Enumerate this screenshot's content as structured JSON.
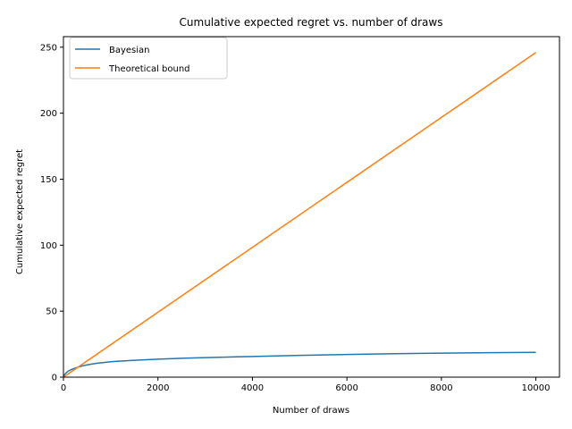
{
  "chart_data": {
    "type": "line",
    "title": "Cumulative expected regret vs. number of draws",
    "xlabel": "Number of draws",
    "ylabel": "Cumulative expected regret",
    "xlim": [
      0,
      10500
    ],
    "ylim": [
      0,
      258
    ],
    "xticks": [
      0,
      2000,
      4000,
      6000,
      8000,
      10000
    ],
    "yticks": [
      0,
      50,
      100,
      150,
      200,
      250
    ],
    "grid": false,
    "legend_position": "upper-left",
    "series": [
      {
        "name": "Bayesian",
        "color": "#1f77b4",
        "x": [
          0,
          25,
          50,
          100,
          150,
          200,
          300,
          400,
          500,
          700,
          1000,
          1500,
          2000,
          2500,
          3000,
          4000,
          5000,
          6000,
          7000,
          8000,
          9000,
          10000
        ],
        "y": [
          0,
          2.0,
          3.0,
          4.5,
          5.5,
          6.2,
          7.5,
          8.5,
          9.3,
          10.5,
          11.7,
          12.8,
          13.6,
          14.3,
          14.8,
          15.7,
          16.5,
          17.2,
          17.8,
          18.2,
          18.5,
          18.8
        ]
      },
      {
        "name": "Theoretical bound",
        "color": "#ff7f0e",
        "x": [
          0,
          10000
        ],
        "y": [
          0,
          246
        ]
      }
    ]
  }
}
